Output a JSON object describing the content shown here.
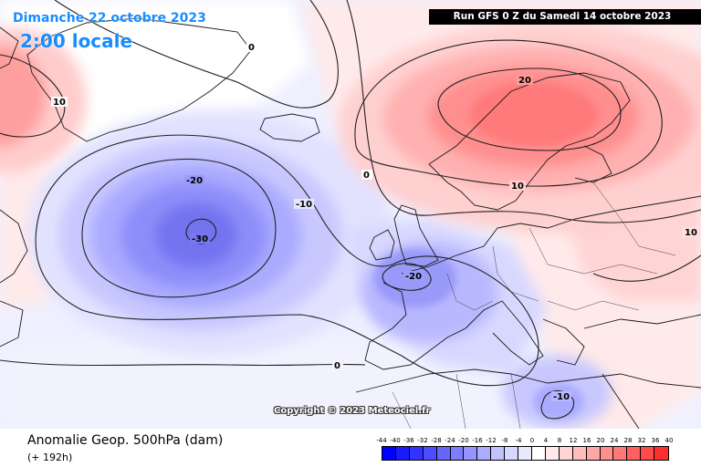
{
  "header": {
    "date": "Dimanche 22 octobre 2023",
    "local_time": "2:00 locale",
    "run_info": "Run GFS 0 Z du Samedi 14 octobre 2023"
  },
  "map": {
    "copyright": "Copyright © 2023 Meteociel.fr",
    "contour_labels": [
      {
        "id": "top-left-0",
        "text": "0"
      },
      {
        "id": "greenland-10",
        "text": "10"
      },
      {
        "id": "atlantic-minus20",
        "text": "-20"
      },
      {
        "id": "atlantic-center-minus30",
        "text": "-30"
      },
      {
        "id": "atlantic-minus10",
        "text": "-10"
      },
      {
        "id": "north-sea-0",
        "text": "0"
      },
      {
        "id": "scandinavia-20",
        "text": "20"
      },
      {
        "id": "baltic-10",
        "text": "10"
      },
      {
        "id": "east-10",
        "text": "10"
      },
      {
        "id": "france-minus20",
        "text": "-20"
      },
      {
        "id": "africa-0",
        "text": "0"
      },
      {
        "id": "eastmed-minus10",
        "text": "-10"
      }
    ]
  },
  "footer": {
    "field_title": "Anomalie Geop. 500hPa (dam)",
    "lead_time": "(+ 192h)"
  },
  "legend": {
    "labels": [
      "-44",
      "-40",
      "-36",
      "-32",
      "-28",
      "-24",
      "-20",
      "-16",
      "-12",
      "-8",
      "-4",
      "0",
      "4",
      "8",
      "12",
      "16",
      "20",
      "24",
      "28",
      "32",
      "36",
      "40"
    ],
    "colors": [
      "#0000ff",
      "#1a1aff",
      "#3333ff",
      "#4d4dff",
      "#6666ff",
      "#7d7dff",
      "#9595ff",
      "#ababff",
      "#c2c2ff",
      "#d7d7ff",
      "#eaeaff",
      "#ffffff",
      "#ffeaea",
      "#ffd4d4",
      "#ffbdbd",
      "#ffa6a6",
      "#ff8f8f",
      "#ff7878",
      "#ff6161",
      "#ff4a4a",
      "#ff2f2f"
    ]
  }
}
